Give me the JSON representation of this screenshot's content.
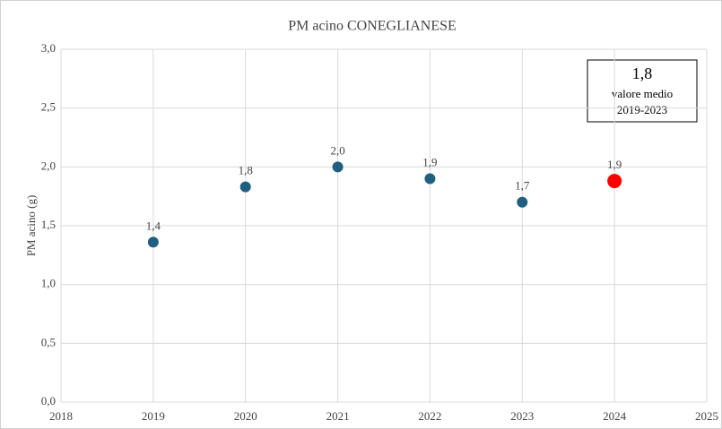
{
  "chart_data": {
    "type": "scatter",
    "title": "PM acino CONEGLIANESE",
    "ylabel": "PM acino (g)",
    "x": [
      2019,
      2020,
      2021,
      2022,
      2023,
      2024
    ],
    "values": [
      1.36,
      1.83,
      2.0,
      1.9,
      1.7,
      1.88
    ],
    "value_labels": [
      "1,4",
      "1,8",
      "2,0",
      "1,9",
      "1,7",
      "1,9"
    ],
    "colors": [
      "#1f5f7f",
      "#1f5f7f",
      "#1f5f7f",
      "#1f5f7f",
      "#1f5f7f",
      "#ff0000"
    ],
    "xlim": [
      2018,
      2025
    ],
    "xticks": [
      2018,
      2019,
      2020,
      2021,
      2022,
      2023,
      2024,
      2025
    ],
    "ylim": [
      0,
      3
    ],
    "yticks": [
      {
        "value": 0,
        "label": "0,0"
      },
      {
        "value": 0.5,
        "label": "0,5"
      },
      {
        "value": 1,
        "label": "1,0"
      },
      {
        "value": 1.5,
        "label": "1,5"
      },
      {
        "value": 2,
        "label": "2,0"
      },
      {
        "value": 2.5,
        "label": "2,5"
      },
      {
        "value": 3,
        "label": "3,0"
      }
    ],
    "grid": true,
    "annotation": {
      "value": "1,8",
      "lines": [
        "valore medio",
        "2019-2023"
      ]
    }
  }
}
